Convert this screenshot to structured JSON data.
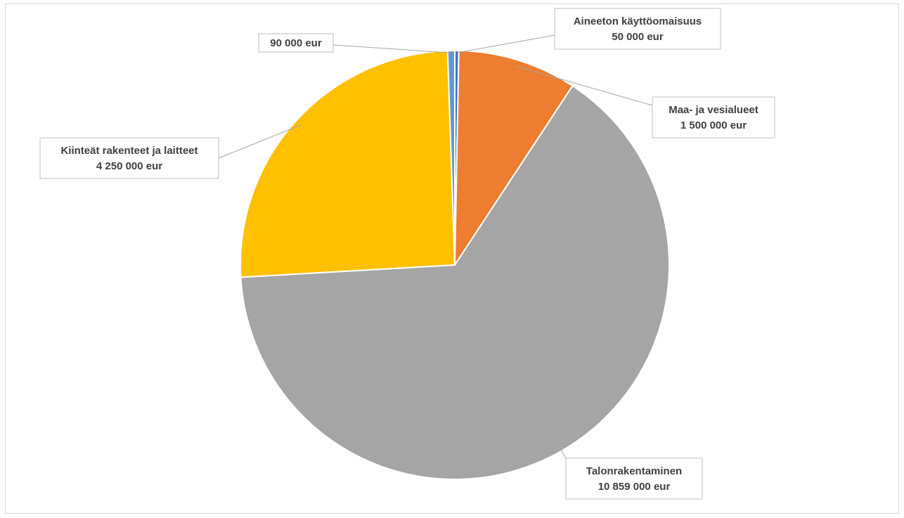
{
  "chart_data": {
    "type": "pie",
    "title": "",
    "start_angle_deg": 0,
    "slices": [
      {
        "name": "Aineeton käyttöomaisuus",
        "value": 50000,
        "value_label": "50 000 eur",
        "color": "#4472C4"
      },
      {
        "name": "Maa- ja vesialueet",
        "value": 1500000,
        "value_label": "1 500 000 eur",
        "color": "#ED7D31"
      },
      {
        "name": "Talonrakentaminen",
        "value": 10859000,
        "value_label": "10 859 000 eur",
        "color": "#A5A5A5"
      },
      {
        "name": "Kiinteät rakenteet ja laitteet",
        "value": 4250000,
        "value_label": "4 250 000 eur",
        "color": "#FFC000"
      },
      {
        "name": "",
        "value": 90000,
        "value_label": "90 000 eur",
        "color": "#5B9BD5"
      }
    ],
    "legend": "none",
    "data_labels": "callouts"
  }
}
